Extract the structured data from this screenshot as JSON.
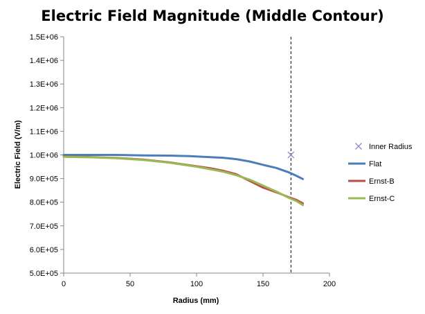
{
  "chart_data": {
    "type": "line",
    "title": "Electric Field Magnitude (Middle Contour)",
    "xlabel": "Radius (mm)",
    "ylabel": "Electric Field (V/m)",
    "xlim": [
      0,
      200
    ],
    "ylim": [
      500000,
      1500000
    ],
    "x_ticks": [
      0,
      50,
      100,
      150,
      200
    ],
    "x_tick_labels": [
      "0",
      "50",
      "100",
      "150",
      "200"
    ],
    "y_ticks": [
      500000,
      600000,
      700000,
      800000,
      900000,
      1000000,
      1100000,
      1200000,
      1300000,
      1400000,
      1500000
    ],
    "y_tick_labels": [
      "5.0E+05",
      "6.0E+05",
      "7.0E+05",
      "8.0E+05",
      "9.0E+05",
      "1.0E+06",
      "1.1E+06",
      "1.2E+06",
      "1.3E+06",
      "1.4E+06",
      "1.5E+06"
    ],
    "grid": false,
    "legend_position": "right",
    "inner_radius_line_x": 171,
    "series": [
      {
        "name": "Inner Radius",
        "kind": "marker",
        "marker": "x",
        "color": "#8c8cc6",
        "points": [
          [
            171,
            1000000
          ]
        ]
      },
      {
        "name": "Flat",
        "kind": "line",
        "color": "#4a7ebb",
        "points": [
          [
            0,
            1000000
          ],
          [
            20,
            1000000
          ],
          [
            40,
            1000000
          ],
          [
            60,
            998000
          ],
          [
            80,
            997000
          ],
          [
            95,
            995000
          ],
          [
            105,
            992000
          ],
          [
            120,
            988000
          ],
          [
            130,
            982000
          ],
          [
            140,
            972000
          ],
          [
            150,
            958000
          ],
          [
            160,
            945000
          ],
          [
            170,
            925000
          ],
          [
            175,
            912000
          ],
          [
            180,
            898000
          ]
        ]
      },
      {
        "name": "Ernst-B",
        "kind": "line",
        "color": "#be4b48",
        "points": [
          [
            0,
            993000
          ],
          [
            20,
            991000
          ],
          [
            40,
            987000
          ],
          [
            60,
            980000
          ],
          [
            80,
            968000
          ],
          [
            100,
            952000
          ],
          [
            110,
            944000
          ],
          [
            120,
            933000
          ],
          [
            130,
            918000
          ],
          [
            140,
            890000
          ],
          [
            150,
            862000
          ],
          [
            160,
            842000
          ],
          [
            170,
            820000
          ],
          [
            175,
            810000
          ],
          [
            180,
            795000
          ]
        ]
      },
      {
        "name": "Ernst-C",
        "kind": "line",
        "color": "#98b954",
        "points": [
          [
            0,
            992000
          ],
          [
            20,
            990000
          ],
          [
            40,
            986000
          ],
          [
            60,
            979000
          ],
          [
            80,
            967000
          ],
          [
            100,
            950000
          ],
          [
            110,
            940000
          ],
          [
            120,
            929000
          ],
          [
            130,
            914000
          ],
          [
            140,
            895000
          ],
          [
            150,
            870000
          ],
          [
            160,
            845000
          ],
          [
            170,
            817000
          ],
          [
            175,
            805000
          ],
          [
            180,
            788000
          ]
        ]
      }
    ]
  }
}
